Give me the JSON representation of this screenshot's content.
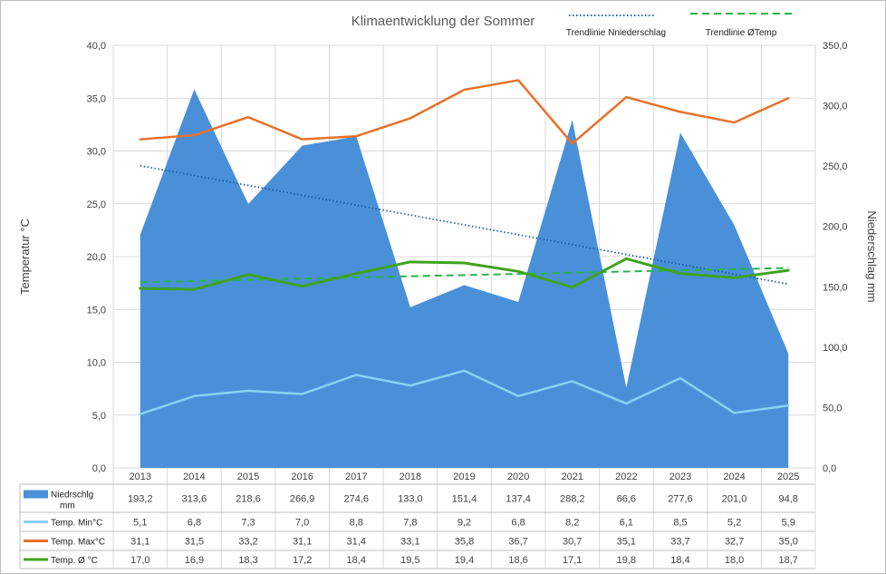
{
  "chart_data": {
    "type": "area",
    "title": "Klimaentwicklung der Sommer",
    "ylabel": "Temperatur °C",
    "y2label": "Niederschlag mm",
    "ylim": [
      0,
      40
    ],
    "y2lim": [
      0,
      350
    ],
    "yticks": [
      "0,0",
      "5,0",
      "10,0",
      "15,0",
      "20,0",
      "25,0",
      "30,0",
      "35,0",
      "40,0"
    ],
    "y2ticks": [
      "0,0",
      "50,0",
      "100,0",
      "150,0",
      "200,0",
      "250,0",
      "300,0",
      "350,0"
    ],
    "grid": true,
    "categories": [
      "2013",
      "2014",
      "2015",
      "2016",
      "2017",
      "2018",
      "2019",
      "2020",
      "2021",
      "2022",
      "2023",
      "2024",
      "2025"
    ],
    "series": [
      {
        "name": "Niedrschlg mm",
        "type": "area",
        "axis": "right",
        "color": "#4a90d9",
        "values": [
          193.2,
          313.6,
          218.6,
          266.9,
          274.6,
          133.0,
          151.4,
          137.4,
          288.2,
          66.6,
          277.6,
          201.0,
          94.8
        ],
        "labels": [
          "193,2",
          "313,6",
          "218,6",
          "266,9",
          "274,6",
          "133,0",
          "151,4",
          "137,4",
          "288,2",
          "66,6",
          "277,6",
          "201,0",
          "94,8"
        ]
      },
      {
        "name": "Temp. Min°C",
        "type": "line",
        "axis": "left",
        "color": "#86d3f5",
        "values": [
          5.1,
          6.8,
          7.3,
          7.0,
          8.8,
          7.8,
          9.2,
          6.8,
          8.2,
          6.1,
          8.5,
          5.2,
          5.9
        ],
        "labels": [
          "5,1",
          "6,8",
          "7,3",
          "7,0",
          "8,8",
          "7,8",
          "9,2",
          "6,8",
          "8,2",
          "6,1",
          "8,5",
          "5,2",
          "5,9"
        ]
      },
      {
        "name": "Temp. Max°C",
        "type": "line",
        "axis": "left",
        "color": "#e8702a",
        "values": [
          31.1,
          31.5,
          33.2,
          31.1,
          31.4,
          33.1,
          35.8,
          36.7,
          30.7,
          35.1,
          33.7,
          32.7,
          35.0
        ],
        "labels": [
          "31,1",
          "31,5",
          "33,2",
          "31,1",
          "31,4",
          "33,1",
          "35,8",
          "36,7",
          "30,7",
          "35,1",
          "33,7",
          "32,7",
          "35,0"
        ]
      },
      {
        "name": "Temp. Ø °C",
        "type": "line",
        "axis": "left",
        "color": "#3fa31f",
        "values": [
          17.0,
          16.9,
          18.3,
          17.2,
          18.4,
          19.5,
          19.4,
          18.6,
          17.1,
          19.8,
          18.4,
          18.0,
          18.7
        ],
        "labels": [
          "17,0",
          "16,9",
          "18,3",
          "17,2",
          "18,4",
          "19,5",
          "19,4",
          "18,6",
          "17,1",
          "19,8",
          "18,4",
          "18,0",
          "18,7"
        ]
      }
    ],
    "trendlines": [
      {
        "name": "Trendlinie Nniederschlag",
        "of": "Niedrschlg mm",
        "axis": "right",
        "style": "dotted",
        "color": "#1f5fa8"
      },
      {
        "name": "Trendlinie ØTemp",
        "of": "Temp. Ø °C",
        "axis": "left",
        "style": "dashed",
        "color": "#28b44a"
      }
    ],
    "legend": "top-right and data table"
  }
}
